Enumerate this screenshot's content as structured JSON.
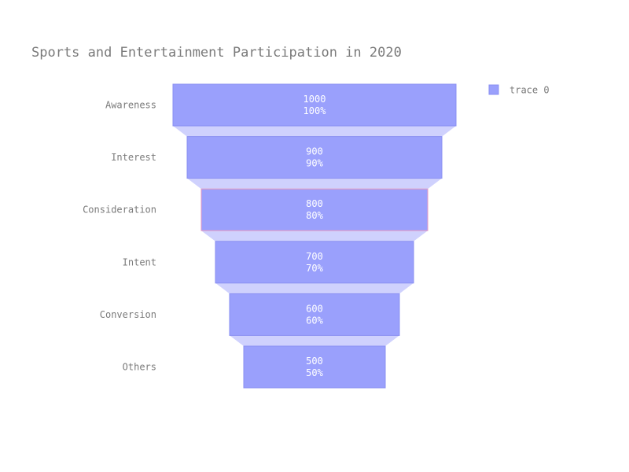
{
  "chart_data": {
    "type": "funnel",
    "title": "Sports and Entertainment Participation in 2020",
    "categories": [
      "Awareness",
      "Interest",
      "Consideration",
      "Intent",
      "Conversion",
      "Others"
    ],
    "values": [
      1000,
      900,
      800,
      700,
      600,
      500
    ],
    "percent_labels": [
      "100%",
      "90%",
      "80%",
      "70%",
      "60%",
      "50%"
    ],
    "series": [
      {
        "name": "trace 0",
        "values": [
          1000,
          900,
          800,
          700,
          600,
          500
        ]
      }
    ],
    "legend": {
      "position": "top-right",
      "entries": [
        "trace 0"
      ]
    },
    "colors": {
      "bar_fill": "#9aa0fc",
      "bar_stroke": "#8a8ff2",
      "highlight_stroke": "#e89ac0",
      "connector_fill": "#cfd1fd",
      "text_muted": "#7a7a7a",
      "bar_text": "#ffffff"
    },
    "highlighted_index": 2
  }
}
